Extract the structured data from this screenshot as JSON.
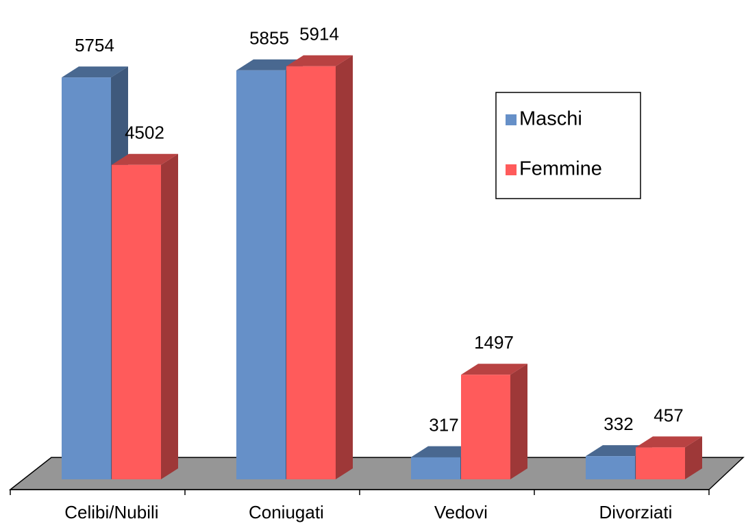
{
  "chart_data": {
    "type": "bar3d",
    "categories": [
      "Celibi/Nubili",
      "Coniugati",
      "Vedovi",
      "Divorziati"
    ],
    "series": [
      {
        "name": "Maschi",
        "color": "#6690c8",
        "values": [
          5754,
          5855,
          317,
          332
        ]
      },
      {
        "name": "Femmine",
        "color": "#ff5b5b",
        "values": [
          4502,
          5914,
          1497,
          457
        ]
      }
    ],
    "legend": "right"
  }
}
